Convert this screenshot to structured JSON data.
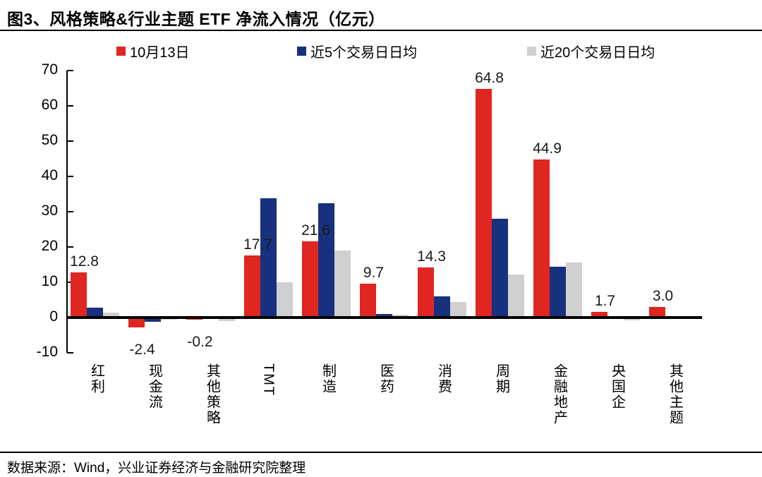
{
  "title": "图3、风格策略&行业主题 ETF 净流入情况（亿元）",
  "footer": "数据来源：Wind，兴业证券经济与金融研究院整理",
  "colors": {
    "red": "#E02620",
    "blue": "#17317E",
    "gray": "#D0D0D0",
    "axis": "#000000"
  },
  "legend": {
    "swatch_names": [
      "red-series-swatch",
      "blue-series-swatch",
      "gray-series-swatch"
    ]
  },
  "chart_data": {
    "type": "bar",
    "title": "图3、风格策略&行业主题 ETF 净流入情况（亿元）",
    "xlabel": "",
    "ylabel": "",
    "ylim": [
      -10,
      70
    ],
    "yticks": [
      70,
      60,
      50,
      40,
      30,
      20,
      10,
      0,
      -10
    ],
    "grid": false,
    "legend_position": "top",
    "categories": [
      "红利",
      "现金流",
      "其他策略",
      "TMT",
      "制造",
      "医药",
      "消费",
      "周期",
      "金融地产",
      "央国企",
      "其他主题"
    ],
    "series": [
      {
        "name": "10月13日",
        "color_key": "red",
        "values": [
          12.8,
          -2.4,
          -0.2,
          17.7,
          21.6,
          9.7,
          14.3,
          64.8,
          44.9,
          1.7,
          3.0
        ]
      },
      {
        "name": "近5个交易日日均",
        "color_key": "blue",
        "values": [
          2.9,
          -0.7,
          0.0,
          33.8,
          32.5,
          1.0,
          6.0,
          28.1,
          14.5,
          0.1,
          0.2
        ]
      },
      {
        "name": "近20个交易日日均",
        "color_key": "gray",
        "values": [
          1.5,
          -0.1,
          -0.6,
          10.0,
          19.0,
          0.9,
          4.4,
          12.3,
          15.7,
          -0.4,
          0.1
        ]
      }
    ],
    "data_labels": [
      "12.8",
      "-2.4",
      "-0.2",
      "17.7",
      "21.6",
      "9.7",
      "14.3",
      "64.8",
      "44.9",
      "1.7",
      "3.0"
    ]
  }
}
